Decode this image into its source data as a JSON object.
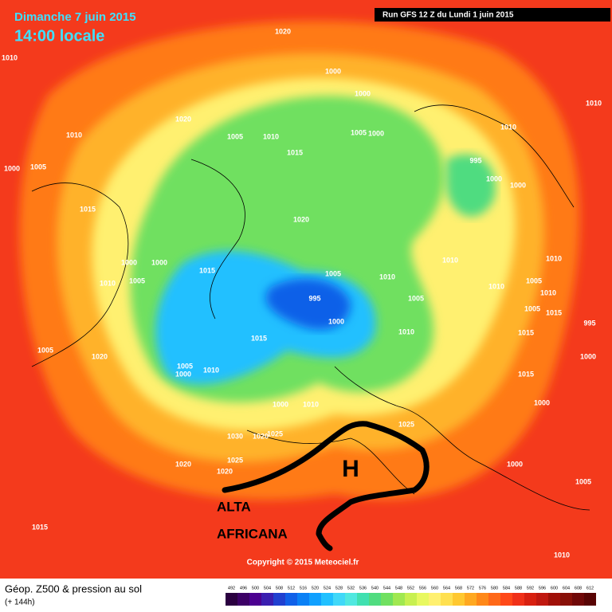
{
  "header": {
    "date": "Dimanche 7 juin 2015",
    "time": "14:00 locale",
    "run": "Run GFS 12 Z du Lundi 1 juin 2015"
  },
  "annotations": {
    "high": "H",
    "label_line1": "ALTA",
    "label_line2": "AFRICANA"
  },
  "copyright": "Copyright © 2015 Meteociel.fr",
  "footer": {
    "title": "Géop. Z500 & pression au sol",
    "lead": "(+ 144h)"
  },
  "pressure_labels": [
    "1010",
    "1020",
    "1000",
    "1000",
    "1020",
    "1005",
    "1010",
    "1005",
    "1000",
    "1015",
    "1010",
    "1000",
    "1005",
    "1010",
    "1010",
    "995",
    "1000",
    "1000",
    "1015",
    "1020",
    "1010",
    "1000",
    "1000",
    "1015",
    "1005",
    "1010",
    "1010",
    "1005",
    "1010",
    "1005",
    "1010",
    "1005",
    "995",
    "1000",
    "1010",
    "1005",
    "1015",
    "995",
    "1010",
    "1015",
    "1015",
    "1005",
    "1020",
    "1000",
    "1005",
    "1000",
    "1010",
    "1015",
    "1000",
    "1000",
    "1010",
    "1025",
    "1030",
    "1020",
    "1025",
    "1020",
    "1025",
    "1020",
    "1000",
    "1015",
    "1010",
    "1005"
  ],
  "scale": {
    "ticks": [
      492,
      496,
      500,
      504,
      508,
      512,
      516,
      520,
      524,
      528,
      532,
      536,
      540,
      544,
      548,
      552,
      556,
      560,
      564,
      568,
      572,
      576,
      580,
      584,
      588,
      592,
      596,
      600,
      604,
      608,
      612
    ],
    "colors": [
      "#2a0040",
      "#3c0066",
      "#4b0090",
      "#3a1eb0",
      "#2040d0",
      "#1060e8",
      "#0a80f5",
      "#10a0ff",
      "#20c0ff",
      "#40d8f8",
      "#50e8e0",
      "#40e0b0",
      "#50dc80",
      "#70e060",
      "#a0e850",
      "#c8f050",
      "#e8f860",
      "#fff070",
      "#ffe050",
      "#ffc830",
      "#ffa820",
      "#ff8818",
      "#ff6818",
      "#ff4818",
      "#f03018",
      "#d82010",
      "#c01810",
      "#a01008",
      "#881008",
      "#700808",
      "#580404"
    ]
  }
}
